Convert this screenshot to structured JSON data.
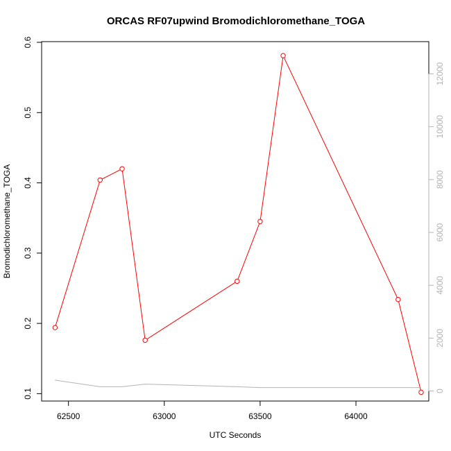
{
  "chart_data": {
    "type": "line",
    "title": "ORCAS RF07upwind Bromodichloromethane_TOGA",
    "xlabel": "UTC Seconds",
    "ylabel": "Bromodichloromethane_TOGA",
    "xlim": [
      62360,
      64380
    ],
    "ylim": [
      0.0895,
      0.601
    ],
    "y2lim": [
      -380,
      13220
    ],
    "x_ticks": [
      62500,
      63000,
      63500,
      64000
    ],
    "x_tick_labels": [
      "62500",
      "63000",
      "63500",
      "64000"
    ],
    "y_ticks": [
      0.1,
      0.2,
      0.3,
      0.4,
      0.5,
      0.6
    ],
    "y_tick_labels": [
      "0.1",
      "0.2",
      "0.3",
      "0.4",
      "0.5",
      "0.6"
    ],
    "y2_ticks": [
      0,
      2000,
      4000,
      6000,
      8000,
      10000,
      12000
    ],
    "y2_tick_labels": [
      "0",
      "2000",
      "4000",
      "6000",
      "8000",
      "10000",
      "12000"
    ],
    "series": [
      {
        "axis": "left",
        "color": "#ff0000",
        "markers": "open-circle",
        "x": [
          62430,
          62665,
          62780,
          62900,
          63380,
          63500,
          63620,
          64220,
          64340
        ],
        "y": [
          0.194,
          0.404,
          0.42,
          0.176,
          0.26,
          0.345,
          0.581,
          0.234,
          0.102
        ]
      },
      {
        "axis": "right",
        "color": "#b3b3b3",
        "markers": "none",
        "x": [
          62430,
          62665,
          62780,
          62900,
          63380,
          63500,
          63620,
          64220,
          64340
        ],
        "y": [
          410,
          160,
          160,
          260,
          160,
          130,
          130,
          130,
          130
        ]
      }
    ],
    "grid": false,
    "legend": "none"
  }
}
